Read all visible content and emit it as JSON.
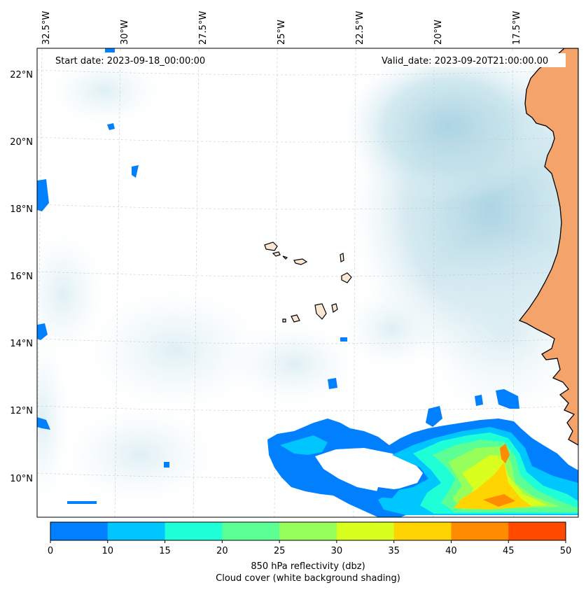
{
  "map": {
    "start_date_label": "Start date: 2023-09-18_00:00:00",
    "valid_date_label": "Valid_date: 2023-09-20T21:00:00.00",
    "longitude_labels": [
      "32.5°W",
      "30°W",
      "27.5°W",
      "25°W",
      "22.5°W",
      "20°W",
      "17.5°W"
    ],
    "latitude_labels": [
      "22°N",
      "20°N",
      "18°N",
      "16°N",
      "14°N",
      "12°N",
      "10°N"
    ],
    "land_color": "#f4a46a",
    "cloud_color": "#b9dce8"
  },
  "colorbar": {
    "ticks": [
      "0",
      "10",
      "15",
      "20",
      "25",
      "30",
      "35",
      "40",
      "45",
      "50"
    ],
    "colors": [
      "#0080ff",
      "#00c6ff",
      "#1effd8",
      "#5cff94",
      "#96ff5a",
      "#d8ff1e",
      "#ffd400",
      "#ff8b00",
      "#ff4a00"
    ],
    "caption_line1": "850 hPa reflectivity (dbz)",
    "caption_line2": "Cloud cover (white background shading)"
  }
}
